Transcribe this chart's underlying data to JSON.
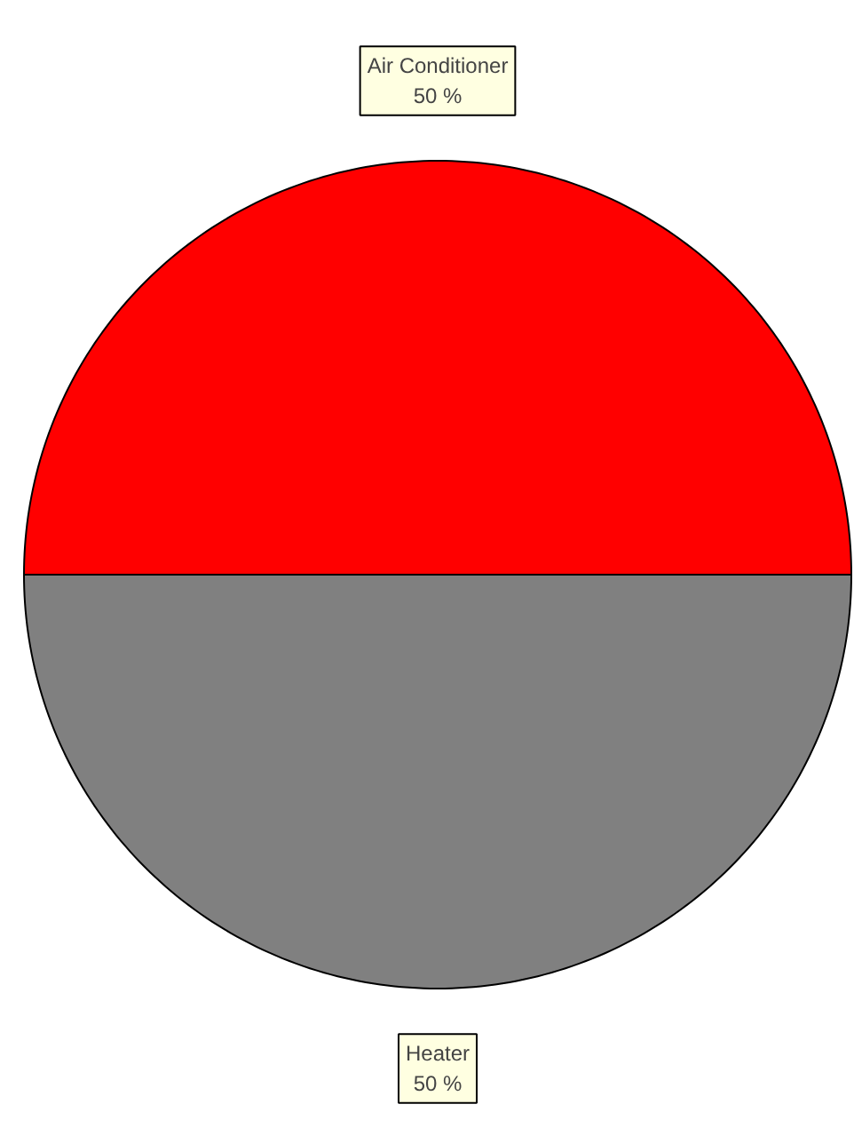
{
  "chart_data": {
    "type": "pie",
    "categories": [
      "Air Conditioner",
      "Heater"
    ],
    "values": [
      50,
      50
    ],
    "colors": [
      "#ff0000",
      "#808080"
    ],
    "value_labels": [
      "50 %",
      "50 %"
    ]
  }
}
